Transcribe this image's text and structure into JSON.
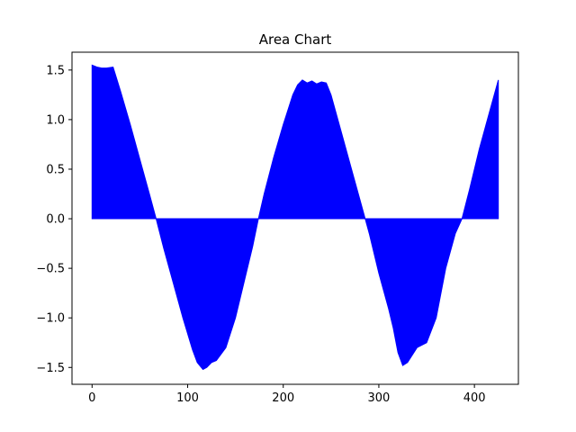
{
  "chart_data": {
    "type": "area",
    "title": "Area Chart",
    "xlabel": "",
    "ylabel": "",
    "xlim": [
      -21,
      446
    ],
    "ylim": [
      -1.67,
      1.68
    ],
    "xticks": [
      0,
      100,
      200,
      300,
      400
    ],
    "yticks": [
      -1.5,
      -1.0,
      -0.5,
      0.0,
      0.5,
      1.0,
      1.5
    ],
    "xtick_labels": [
      "0",
      "100",
      "200",
      "300",
      "400"
    ],
    "ytick_labels": [
      "−1.5",
      "−1.0",
      "−0.5",
      "0.0",
      "0.5",
      "1.0",
      "1.5"
    ],
    "grid": false,
    "legend": null,
    "fill_color": "#0000ff",
    "baseline": 0,
    "series": [
      {
        "x": [
          0,
          5,
          10,
          15,
          22,
          30,
          40,
          50,
          60,
          67,
          75,
          85,
          95,
          105,
          110,
          116,
          120,
          125,
          130,
          140,
          150,
          160,
          168,
          174,
          180,
          190,
          200,
          205,
          210,
          215,
          220,
          225,
          230,
          235,
          240,
          245,
          250,
          260,
          270,
          280,
          290,
          300,
          310,
          315,
          320,
          325,
          330,
          340,
          350,
          360,
          370,
          380,
          387,
          395,
          405,
          415,
          425
        ],
        "y": [
          1.55,
          1.53,
          1.52,
          1.52,
          1.53,
          1.28,
          0.95,
          0.6,
          0.25,
          0.0,
          -0.3,
          -0.65,
          -1.0,
          -1.32,
          -1.45,
          -1.52,
          -1.5,
          -1.45,
          -1.43,
          -1.3,
          -1.0,
          -0.6,
          -0.28,
          0.0,
          0.25,
          0.62,
          0.95,
          1.1,
          1.25,
          1.35,
          1.4,
          1.37,
          1.39,
          1.36,
          1.38,
          1.37,
          1.25,
          0.9,
          0.55,
          0.2,
          -0.15,
          -0.55,
          -0.9,
          -1.1,
          -1.35,
          -1.48,
          -1.45,
          -1.3,
          -1.25,
          -1.0,
          -0.5,
          -0.15,
          0.0,
          0.3,
          0.7,
          1.05,
          1.4
        ]
      }
    ]
  }
}
